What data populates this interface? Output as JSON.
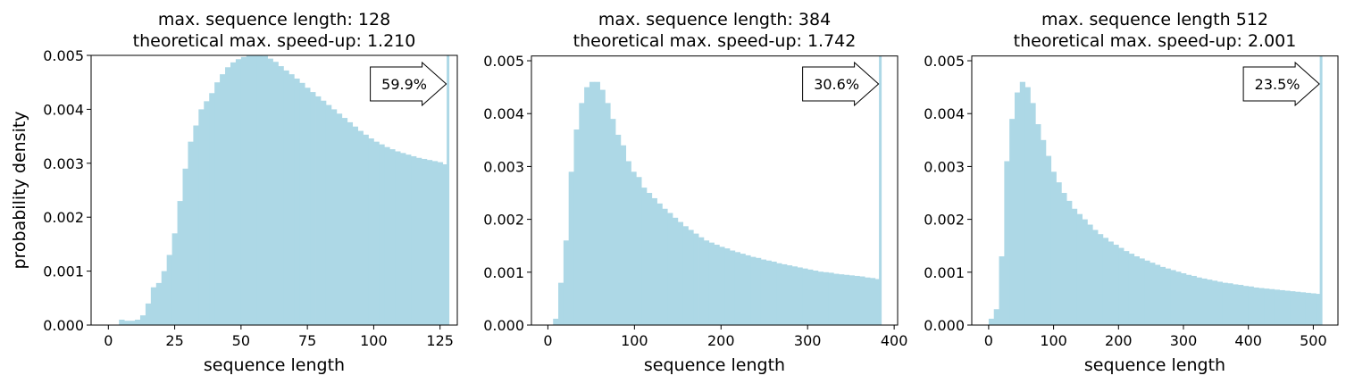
{
  "chart_data": [
    {
      "type": "bar",
      "title_lines": [
        "max. sequence length: 128",
        "theoretical max. speed-up: 1.210"
      ],
      "xlabel": "sequence length",
      "ylabel": "probability density",
      "xlim": [
        -6.5,
        131.5
      ],
      "ylim": [
        0,
        0.005
      ],
      "xticks": [
        0,
        25,
        50,
        75,
        100,
        125
      ],
      "yticks": [
        "0.000",
        "0.001",
        "0.002",
        "0.003",
        "0.004",
        "0.005"
      ],
      "bar_color": "#add8e6",
      "bin_start": 4,
      "bin_width": 2,
      "values": [
        0.0001,
        8e-05,
        8e-05,
        0.0001,
        0.00018,
        0.0004,
        0.0007,
        0.00078,
        0.001,
        0.0013,
        0.0017,
        0.0023,
        0.0029,
        0.0034,
        0.0037,
        0.004,
        0.00415,
        0.0043,
        0.0045,
        0.00465,
        0.00478,
        0.00487,
        0.00493,
        0.00497,
        0.005,
        0.00502,
        0.00503,
        0.00499,
        0.00494,
        0.00488,
        0.0048,
        0.00472,
        0.00465,
        0.00457,
        0.00449,
        0.0044,
        0.00432,
        0.00424,
        0.00416,
        0.00408,
        0.004,
        0.00392,
        0.00384,
        0.00376,
        0.00368,
        0.0036,
        0.00353,
        0.00346,
        0.0034,
        0.00335,
        0.0033,
        0.00326,
        0.00322,
        0.00319,
        0.00316,
        0.00313,
        0.0031,
        0.00308,
        0.00306,
        0.00304,
        0.00302,
        0.00298
      ],
      "max_length_bin": {
        "x": 128,
        "clipped": true
      },
      "annotation": "59.9%"
    },
    {
      "type": "bar",
      "title_lines": [
        "max. sequence length: 384",
        "theoretical max. speed-up: 1.742"
      ],
      "xlabel": "sequence length",
      "ylabel": "",
      "xlim": [
        -19,
        404
      ],
      "ylim": [
        0,
        0.00509
      ],
      "xticks": [
        0,
        100,
        200,
        300,
        400
      ],
      "yticks": [
        "0.000",
        "0.001",
        "0.002",
        "0.003",
        "0.004",
        "0.005"
      ],
      "bar_color": "#add8e6",
      "bin_start": 0,
      "bin_width": 6,
      "values": [
        0,
        0.00012,
        0.0008,
        0.0016,
        0.0029,
        0.0037,
        0.0042,
        0.0045,
        0.0046,
        0.0046,
        0.00445,
        0.0042,
        0.0039,
        0.0036,
        0.0034,
        0.0031,
        0.0029,
        0.0028,
        0.0026,
        0.0025,
        0.0024,
        0.0023,
        0.0022,
        0.00212,
        0.00203,
        0.00195,
        0.00187,
        0.0018,
        0.00173,
        0.00166,
        0.0016,
        0.00156,
        0.00152,
        0.00148,
        0.00145,
        0.00141,
        0.00138,
        0.00135,
        0.00132,
        0.00129,
        0.00127,
        0.00124,
        0.00122,
        0.0012,
        0.00117,
        0.00115,
        0.00113,
        0.00111,
        0.00109,
        0.00107,
        0.00105,
        0.00103,
        0.00101,
        0.001,
        0.00099,
        0.00097,
        0.00096,
        0.00095,
        0.00094,
        0.00093,
        0.00092,
        0.0009,
        0.00089,
        0.00087
      ],
      "max_length_bin": {
        "x": 384,
        "clipped": true
      },
      "annotation": "30.6%"
    },
    {
      "type": "bar",
      "title_lines": [
        "max. sequence length 512",
        "theoretical max. speed-up: 2.001"
      ],
      "xlabel": "sequence length",
      "ylabel": "",
      "xlim": [
        -26,
        538
      ],
      "ylim": [
        0,
        0.00509
      ],
      "xticks": [
        0,
        100,
        200,
        300,
        400,
        500
      ],
      "yticks": [
        "0.000",
        "0.001",
        "0.002",
        "0.003",
        "0.004",
        "0.005"
      ],
      "bar_color": "#add8e6",
      "bin_start": 0,
      "bin_width": 8,
      "values": [
        0.00012,
        0.0003,
        0.0013,
        0.0031,
        0.0039,
        0.0044,
        0.0046,
        0.0045,
        0.0042,
        0.0038,
        0.0035,
        0.0032,
        0.0029,
        0.0027,
        0.0025,
        0.00235,
        0.0022,
        0.0021,
        0.002,
        0.0019,
        0.0018,
        0.00172,
        0.00165,
        0.00158,
        0.00152,
        0.00146,
        0.0014,
        0.00135,
        0.0013,
        0.00126,
        0.00122,
        0.00118,
        0.00114,
        0.0011,
        0.00107,
        0.00104,
        0.00101,
        0.00098,
        0.00095,
        0.00093,
        0.0009,
        0.00088,
        0.00086,
        0.00084,
        0.00082,
        0.0008,
        0.00079,
        0.00077,
        0.00076,
        0.00074,
        0.00073,
        0.00071,
        0.0007,
        0.00069,
        0.00068,
        0.00067,
        0.00066,
        0.00065,
        0.00064,
        0.00063,
        0.00062,
        0.00061,
        0.0006,
        0.00059
      ],
      "max_length_bin": {
        "x": 512,
        "clipped": true
      },
      "annotation": "23.5%"
    }
  ]
}
